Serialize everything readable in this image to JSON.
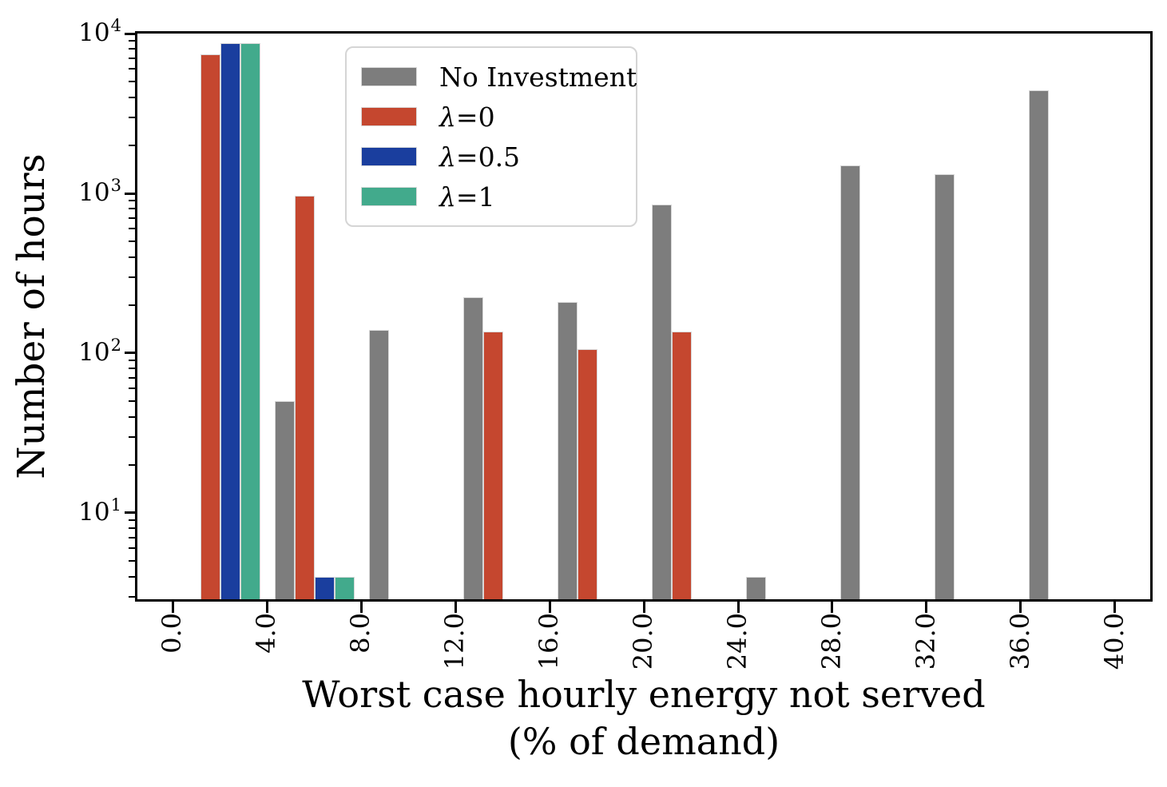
{
  "chart_data": {
    "type": "bar",
    "yscale": "log",
    "ylabel": "Number of hours",
    "xlabel_line1": "Worst case hourly energy not served",
    "xlabel_line2": "(% of demand)",
    "xlim": [
      -1.5,
      41.5
    ],
    "ylim": [
      2.88,
      10000
    ],
    "grid": false,
    "bin_width": 4,
    "bin_starts": [
      0,
      4,
      8,
      12,
      16,
      20,
      24,
      28,
      32,
      36
    ],
    "bar_slot_offset": 0.34,
    "bar_data_width": 0.845,
    "x_tick_values": [
      0,
      4,
      8,
      12,
      16,
      20,
      24,
      28,
      32,
      36,
      40
    ],
    "x_tick_labels": [
      "0.0",
      "4.0",
      "8.0",
      "12.0",
      "16.0",
      "20.0",
      "24.0",
      "28.0",
      "32.0",
      "36.0",
      "40.0"
    ],
    "y_tick_base": "10",
    "y_tick_exponents": [
      1,
      2,
      3,
      4
    ],
    "series": [
      {
        "name": "No Investment",
        "color": "#7d7d7d",
        "values": [
          0,
          50,
          140,
          225,
          210,
          850,
          4,
          1500,
          1320,
          4400
        ]
      },
      {
        "name": "λ=0",
        "color": "#c5472f",
        "values": [
          7400,
          965,
          0,
          137,
          106,
          137,
          0,
          0,
          0,
          0
        ]
      },
      {
        "name": "λ=0.5",
        "color": "#1a3e9e",
        "values": [
          8760,
          4,
          0,
          0,
          0,
          0,
          0,
          0,
          0,
          0
        ]
      },
      {
        "name": "λ=1",
        "color": "#42aa8c",
        "values": [
          8760,
          4,
          0,
          0,
          0,
          0,
          0,
          0,
          0,
          0
        ]
      }
    ],
    "legend": {
      "position": "upper left inset",
      "labels": [
        "No Investment",
        "λ=0",
        "λ=0.5",
        "λ=1"
      ]
    },
    "colors": {
      "axis": "#000000",
      "bar_edge": "#d8d8d8",
      "legend_border": "#d5d5d5",
      "background": "#ffffff"
    }
  }
}
